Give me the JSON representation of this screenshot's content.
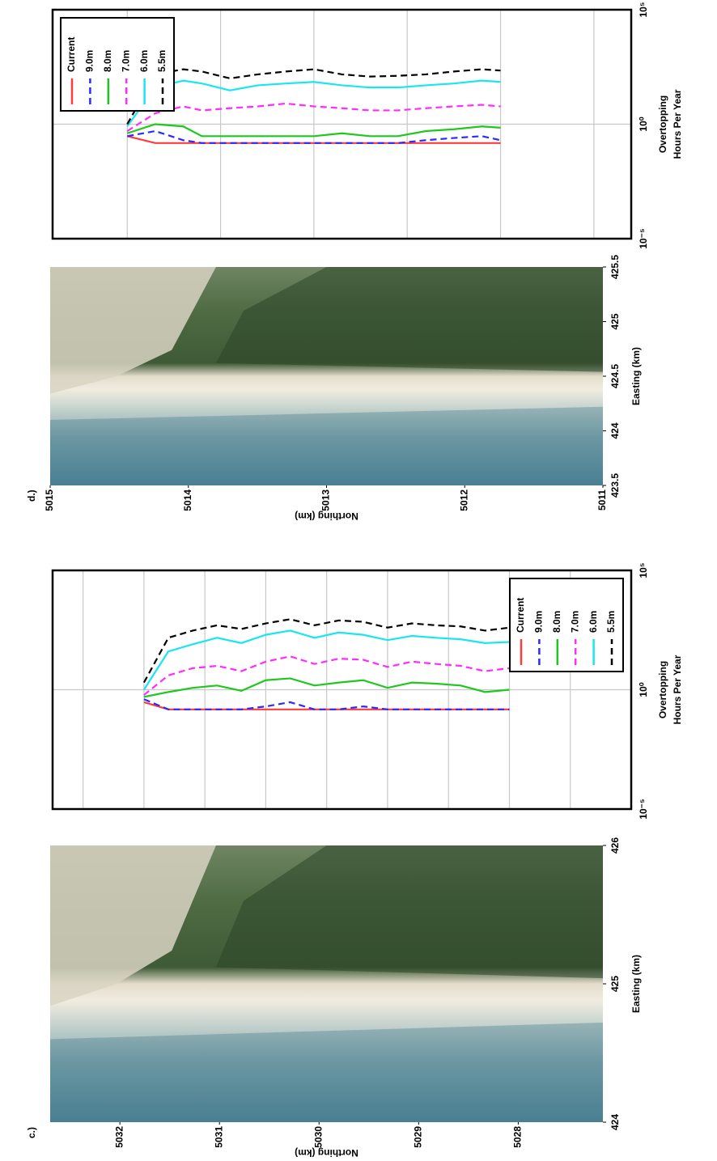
{
  "chart_data": [
    {
      "type": "image",
      "panel_label": "c.)",
      "xlabel": "Easting (km)",
      "ylabel": "Northing (km)",
      "xlim": [
        424,
        426
      ],
      "xticks": [
        424,
        425,
        426
      ],
      "ylim": [
        5032.7,
        5027.15
      ],
      "yticks": [
        5032,
        5031,
        5030,
        5029,
        5028
      ]
    },
    {
      "type": "line",
      "xlabel": [
        "Overtopping",
        "Hours Per Year"
      ],
      "log_x": true,
      "xlim": [
        1e-05,
        100000
      ],
      "xticks": [
        {
          "value": 1e-05,
          "label": "10⁻⁵"
        },
        {
          "value": 1,
          "label": "10⁰"
        },
        {
          "value": 100000,
          "label": "10⁵"
        }
      ],
      "ylim": [
        5032.25,
        5027.5
      ],
      "yticks": [
        5032,
        5031.5,
        5031,
        5030.5,
        5030,
        5029.5,
        5029,
        5028.5,
        5028
      ],
      "ytick_labels": false,
      "grid": true,
      "legend": "lower right",
      "y": [
        5031.5,
        5031.3,
        5031.1,
        5030.9,
        5030.7,
        5030.5,
        5030.3,
        5030.1,
        5029.9,
        5029.7,
        5029.5,
        5029.3,
        5029.1,
        5028.9,
        5028.7,
        5028.5
      ],
      "series": [
        {
          "name": "Current",
          "color": "#ff3b3b",
          "dash": false,
          "values": [
            0.3,
            0.15,
            0.15,
            0.15,
            0.15,
            0.15,
            0.15,
            0.15,
            0.15,
            0.15,
            0.15,
            0.15,
            0.15,
            0.15,
            0.15,
            0.15
          ]
        },
        {
          "name": "9.0m",
          "color": "#2b2bff",
          "dash": true,
          "values": [
            0.4,
            0.15,
            0.15,
            0.15,
            0.15,
            0.2,
            0.3,
            0.15,
            0.15,
            0.2,
            0.15,
            0.15,
            0.15,
            0.15,
            0.15,
            0.15
          ]
        },
        {
          "name": "8.0m",
          "color": "#1ec81e",
          "dash": false,
          "values": [
            0.5,
            0.8,
            1.2,
            1.5,
            0.9,
            2.5,
            3,
            1.5,
            2,
            2.5,
            1.2,
            2,
            1.8,
            1.5,
            0.8,
            1
          ]
        },
        {
          "name": "7.0m",
          "color": "#ff2bff",
          "dash": true,
          "values": [
            0.6,
            4,
            8,
            10,
            6,
            15,
            25,
            12,
            20,
            18,
            9,
            15,
            12,
            10,
            6,
            8
          ]
        },
        {
          "name": "6.0m",
          "color": "#19e6f0",
          "dash": false,
          "values": [
            1,
            40,
            80,
            150,
            90,
            200,
            300,
            150,
            250,
            200,
            120,
            180,
            150,
            130,
            90,
            100
          ]
        },
        {
          "name": "5.5m",
          "color": "#000000",
          "dash": true,
          "values": [
            2,
            150,
            300,
            500,
            350,
            600,
            900,
            500,
            800,
            700,
            400,
            600,
            500,
            450,
            300,
            400
          ]
        }
      ]
    },
    {
      "type": "image",
      "panel_label": "d.)",
      "xlabel": "Easting (km)",
      "ylabel": "Northing (km)",
      "xlim": [
        423.5,
        425.5
      ],
      "xticks": [
        423.5,
        424,
        424.5,
        425,
        425.5
      ],
      "ylim": [
        5015,
        5011
      ],
      "yticks": [
        5015,
        5014,
        5013,
        5012,
        5011
      ]
    },
    {
      "type": "line",
      "xlabel": [
        "Overtopping",
        "Hours Per Year"
      ],
      "log_x": true,
      "xlim": [
        1e-05,
        100000
      ],
      "xticks": [
        {
          "value": 1e-05,
          "label": "10⁻⁵"
        },
        {
          "value": 1,
          "label": "10⁰"
        },
        {
          "value": 100000,
          "label": "10⁵"
        }
      ],
      "ylim": [
        5014.4,
        5011.3
      ],
      "yticks": [
        5014,
        5013.5,
        5013,
        5012.5,
        5012,
        5011.5
      ],
      "ytick_labels": false,
      "grid": true,
      "legend": "upper right",
      "y": [
        5014.0,
        5013.85,
        5013.7,
        5013.6,
        5013.45,
        5013.3,
        5013.15,
        5013.0,
        5012.85,
        5012.7,
        5012.55,
        5012.4,
        5012.25,
        5012.1,
        5012.0
      ],
      "series": [
        {
          "name": "Current",
          "color": "#ff3b3b",
          "dash": false,
          "values": [
            0.3,
            0.15,
            0.15,
            0.15,
            0.15,
            0.15,
            0.15,
            0.15,
            0.15,
            0.15,
            0.15,
            0.15,
            0.15,
            0.15,
            0.15
          ]
        },
        {
          "name": "9.0m",
          "color": "#2b2bff",
          "dash": true,
          "values": [
            0.3,
            0.5,
            0.2,
            0.15,
            0.15,
            0.15,
            0.15,
            0.15,
            0.15,
            0.15,
            0.15,
            0.2,
            0.25,
            0.3,
            0.2
          ]
        },
        {
          "name": "8.0m",
          "color": "#1ec81e",
          "dash": false,
          "values": [
            0.4,
            1,
            0.8,
            0.3,
            0.3,
            0.3,
            0.3,
            0.3,
            0.4,
            0.3,
            0.3,
            0.5,
            0.6,
            0.8,
            0.7
          ]
        },
        {
          "name": "7.0m",
          "color": "#ff2bff",
          "dash": true,
          "values": [
            0.5,
            3,
            6,
            4,
            5,
            6,
            8,
            6,
            5,
            4,
            4,
            5,
            6,
            7,
            6
          ]
        },
        {
          "name": "6.0m",
          "color": "#19e6f0",
          "dash": false,
          "values": [
            0.8,
            40,
            80,
            60,
            30,
            50,
            60,
            70,
            50,
            40,
            40,
            50,
            60,
            80,
            70
          ]
        },
        {
          "name": "5.5m",
          "color": "#000000",
          "dash": true,
          "values": [
            1,
            150,
            250,
            200,
            100,
            150,
            200,
            250,
            150,
            120,
            130,
            150,
            200,
            250,
            220
          ]
        }
      ]
    }
  ]
}
